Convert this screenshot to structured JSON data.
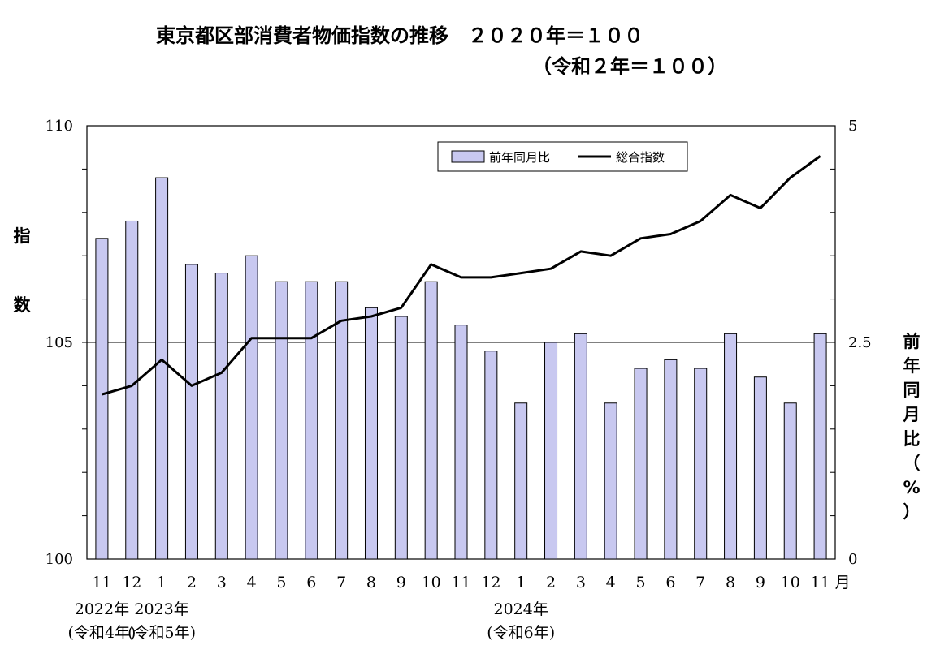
{
  "chart_data": {
    "type": "bar+line",
    "title": "東京都区部消費者物価指数の推移　２０２０年＝１００",
    "subtitle": "（令和２年＝１００）",
    "categories": [
      "11",
      "12",
      "1",
      "2",
      "3",
      "4",
      "5",
      "6",
      "7",
      "8",
      "9",
      "10",
      "11",
      "12",
      "1",
      "2",
      "3",
      "4",
      "5",
      "6",
      "7",
      "8",
      "9",
      "10",
      "11"
    ],
    "month_unit": "月",
    "year_labels": [
      {
        "at_index": 0,
        "year": "2022年",
        "era": "(令和4年)"
      },
      {
        "at_index": 2,
        "year": "2023年",
        "era": "(令和5年)"
      },
      {
        "at_index": 14,
        "year": "2024年",
        "era": "(令和6年)"
      }
    ],
    "series": [
      {
        "name": "前年同月比",
        "kind": "bar",
        "axis": "right",
        "color": "#c8c8f0",
        "values": [
          3.7,
          3.9,
          4.4,
          3.4,
          3.3,
          3.5,
          3.2,
          3.2,
          3.2,
          2.9,
          2.8,
          3.2,
          2.7,
          2.4,
          1.8,
          2.5,
          2.6,
          1.8,
          2.2,
          2.3,
          2.2,
          2.6,
          2.1,
          1.8,
          2.6
        ]
      },
      {
        "name": "総合指数",
        "kind": "line",
        "axis": "left",
        "color": "#000000",
        "values": [
          103.8,
          104.0,
          104.6,
          104.0,
          104.3,
          105.1,
          105.1,
          105.1,
          105.5,
          105.6,
          105.8,
          106.8,
          106.5,
          106.5,
          106.6,
          106.7,
          107.1,
          107.0,
          107.4,
          107.5,
          107.8,
          108.4,
          108.1,
          108.8,
          109.3
        ]
      }
    ],
    "left_axis": {
      "label": "指数",
      "min": 100,
      "max": 110,
      "ticks": [
        "100",
        "105",
        "110"
      ]
    },
    "right_axis": {
      "label": "前年同月比（%）",
      "min": 0,
      "max": 5,
      "ticks": [
        "0",
        "2.5",
        "5"
      ]
    },
    "gridlines": "horizontal at 2.5 / 105",
    "legend": {
      "position": "top-right",
      "items": [
        "前年同月比",
        "総合指数"
      ]
    }
  }
}
